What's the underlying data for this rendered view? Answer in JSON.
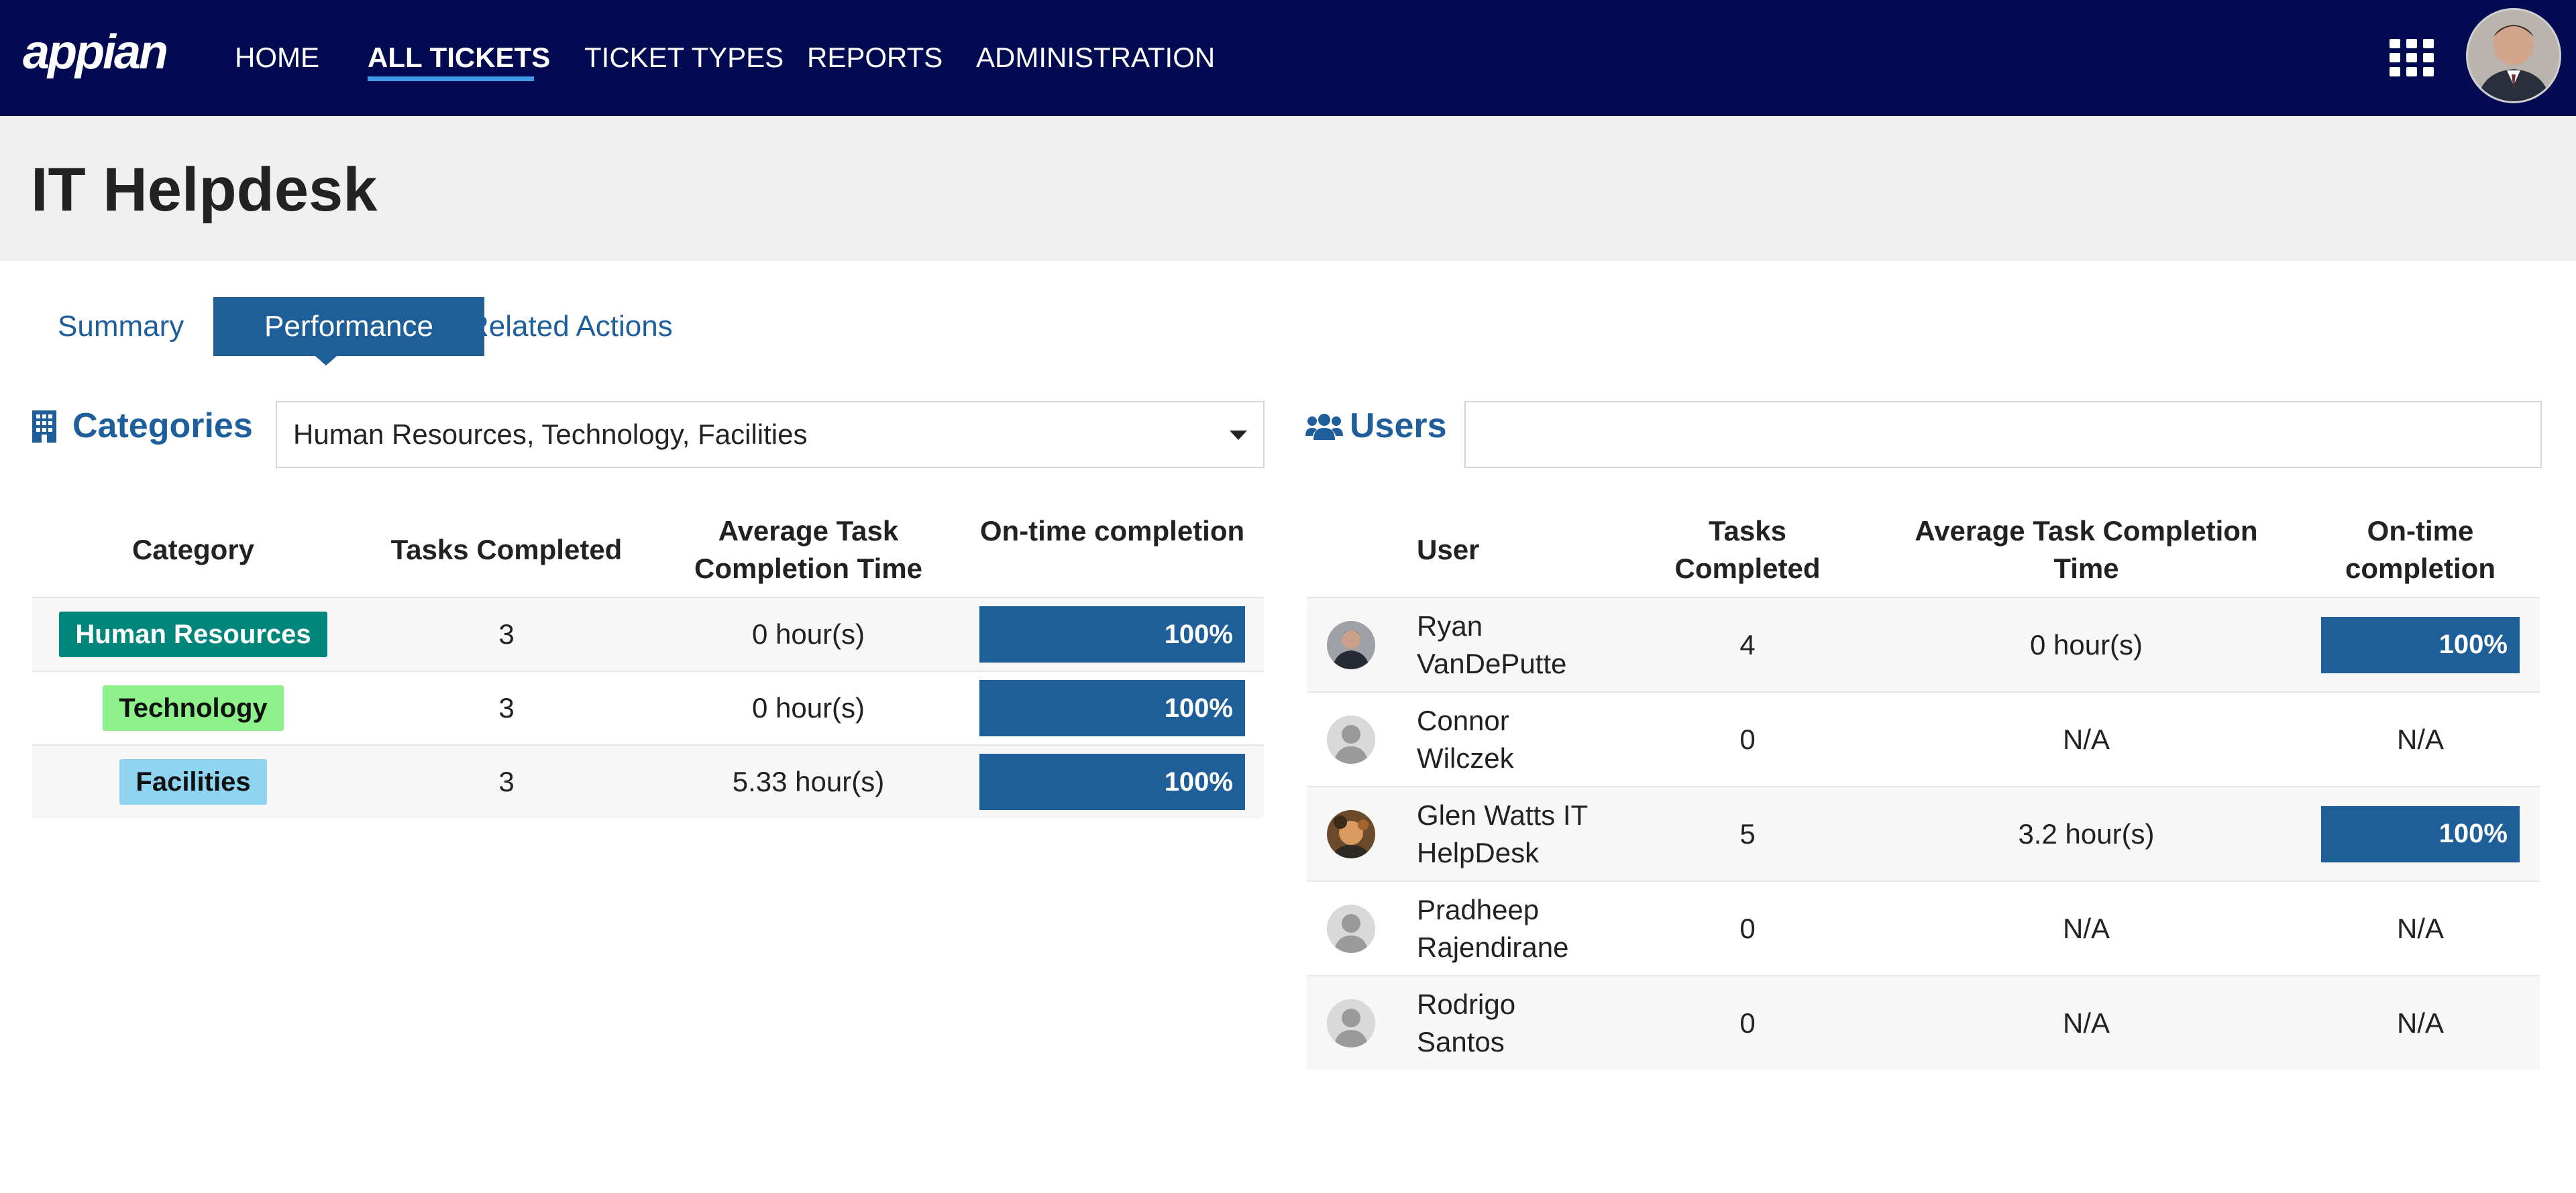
{
  "app": {
    "logo_text": "appian",
    "nav": [
      "HOME",
      "ALL TICKETS",
      "TICKET TYPES",
      "REPORTS",
      "ADMINISTRATION"
    ],
    "active_nav": "ALL TICKETS",
    "icons": {
      "apps": "grid-icon",
      "user": "avatar"
    }
  },
  "page": {
    "title": "IT Helpdesk"
  },
  "tabs": [
    "Summary",
    "Performance",
    "Related Actions"
  ],
  "active_tab": "Performance",
  "categories": {
    "heading": "Categories",
    "icon": "building-icon",
    "filter_value": "Human Resources, Technology, Facilities",
    "columns": [
      "Category",
      "Tasks Completed",
      "Average Task Completion Time",
      "On-time completion"
    ],
    "rows": [
      {
        "category": "Human Resources",
        "badge_bg": "#00867a",
        "badge_fg": "#ffffff",
        "tasks": "3",
        "avg_time": "0 hour(s)",
        "on_time": "100%",
        "on_time_value": 1.0
      },
      {
        "category": "Technology",
        "badge_bg": "#8ef08a",
        "badge_fg": "#111111",
        "tasks": "3",
        "avg_time": "0 hour(s)",
        "on_time": "100%",
        "on_time_value": 1.0
      },
      {
        "category": "Facilities",
        "badge_bg": "#8fd4f0",
        "badge_fg": "#111111",
        "tasks": "3",
        "avg_time": "5.33 hour(s)",
        "on_time": "100%",
        "on_time_value": 1.0
      }
    ]
  },
  "users": {
    "heading": "Users",
    "icon": "users-icon",
    "search_value": "",
    "columns": [
      "User",
      "Tasks Completed",
      "Average Task Completion Time",
      "On-time completion"
    ],
    "rows": [
      {
        "name_line1": "Ryan",
        "name_line2": "VanDePutte",
        "avatar": "photo",
        "tasks": "4",
        "avg_time": "0 hour(s)",
        "on_time": "100%",
        "on_time_value": 1.0
      },
      {
        "name_line1": "Connor",
        "name_line2": "Wilczek",
        "avatar": "default",
        "tasks": "0",
        "avg_time": "N/A",
        "on_time": "N/A",
        "on_time_value": null
      },
      {
        "name_line1": "Glen Watts IT",
        "name_line2": "HelpDesk",
        "avatar": "photo2",
        "tasks": "5",
        "avg_time": "3.2 hour(s)",
        "on_time": "100%",
        "on_time_value": 1.0
      },
      {
        "name_line1": "Pradheep",
        "name_line2": "Rajendirane",
        "avatar": "default",
        "tasks": "0",
        "avg_time": "N/A",
        "on_time": "N/A",
        "on_time_value": null
      },
      {
        "name_line1": "Rodrigo",
        "name_line2": "Santos",
        "avatar": "default",
        "tasks": "0",
        "avg_time": "N/A",
        "on_time": "N/A",
        "on_time_value": null
      }
    ]
  },
  "colors": {
    "nav_bg": "#020b52",
    "accent": "#1f5f99",
    "nav_underline": "#3d9be9"
  }
}
